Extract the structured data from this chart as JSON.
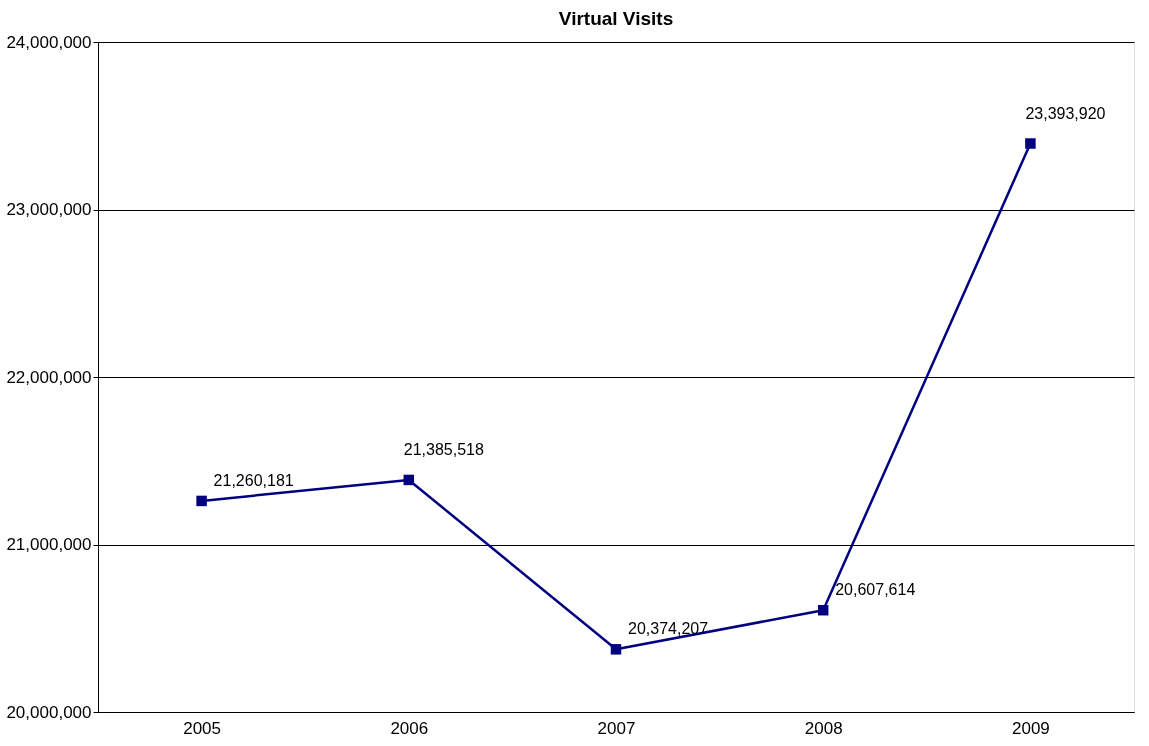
{
  "chart_data": {
    "type": "line",
    "title": "Virtual Visits",
    "categories": [
      "2005",
      "2006",
      "2007",
      "2008",
      "2009"
    ],
    "series": [
      {
        "color": "#000080",
        "values": [
          21260181,
          21385518,
          20374207,
          20607614,
          23393920
        ],
        "value_labels": [
          "21,260,181",
          "21,385,518",
          "20,374,207",
          "20,607,614",
          "23,393,920"
        ]
      }
    ],
    "ylim": [
      20000000,
      24000000
    ],
    "yticks": [
      {
        "value": 20000000,
        "label": "20,000,000"
      },
      {
        "value": 21000000,
        "label": "21,000,000"
      },
      {
        "value": 22000000,
        "label": "22,000,000"
      },
      {
        "value": 23000000,
        "label": "23,000,000"
      },
      {
        "value": 24000000,
        "label": "24,000,000"
      }
    ],
    "grid": "y",
    "marker": "square",
    "legend": false
  }
}
